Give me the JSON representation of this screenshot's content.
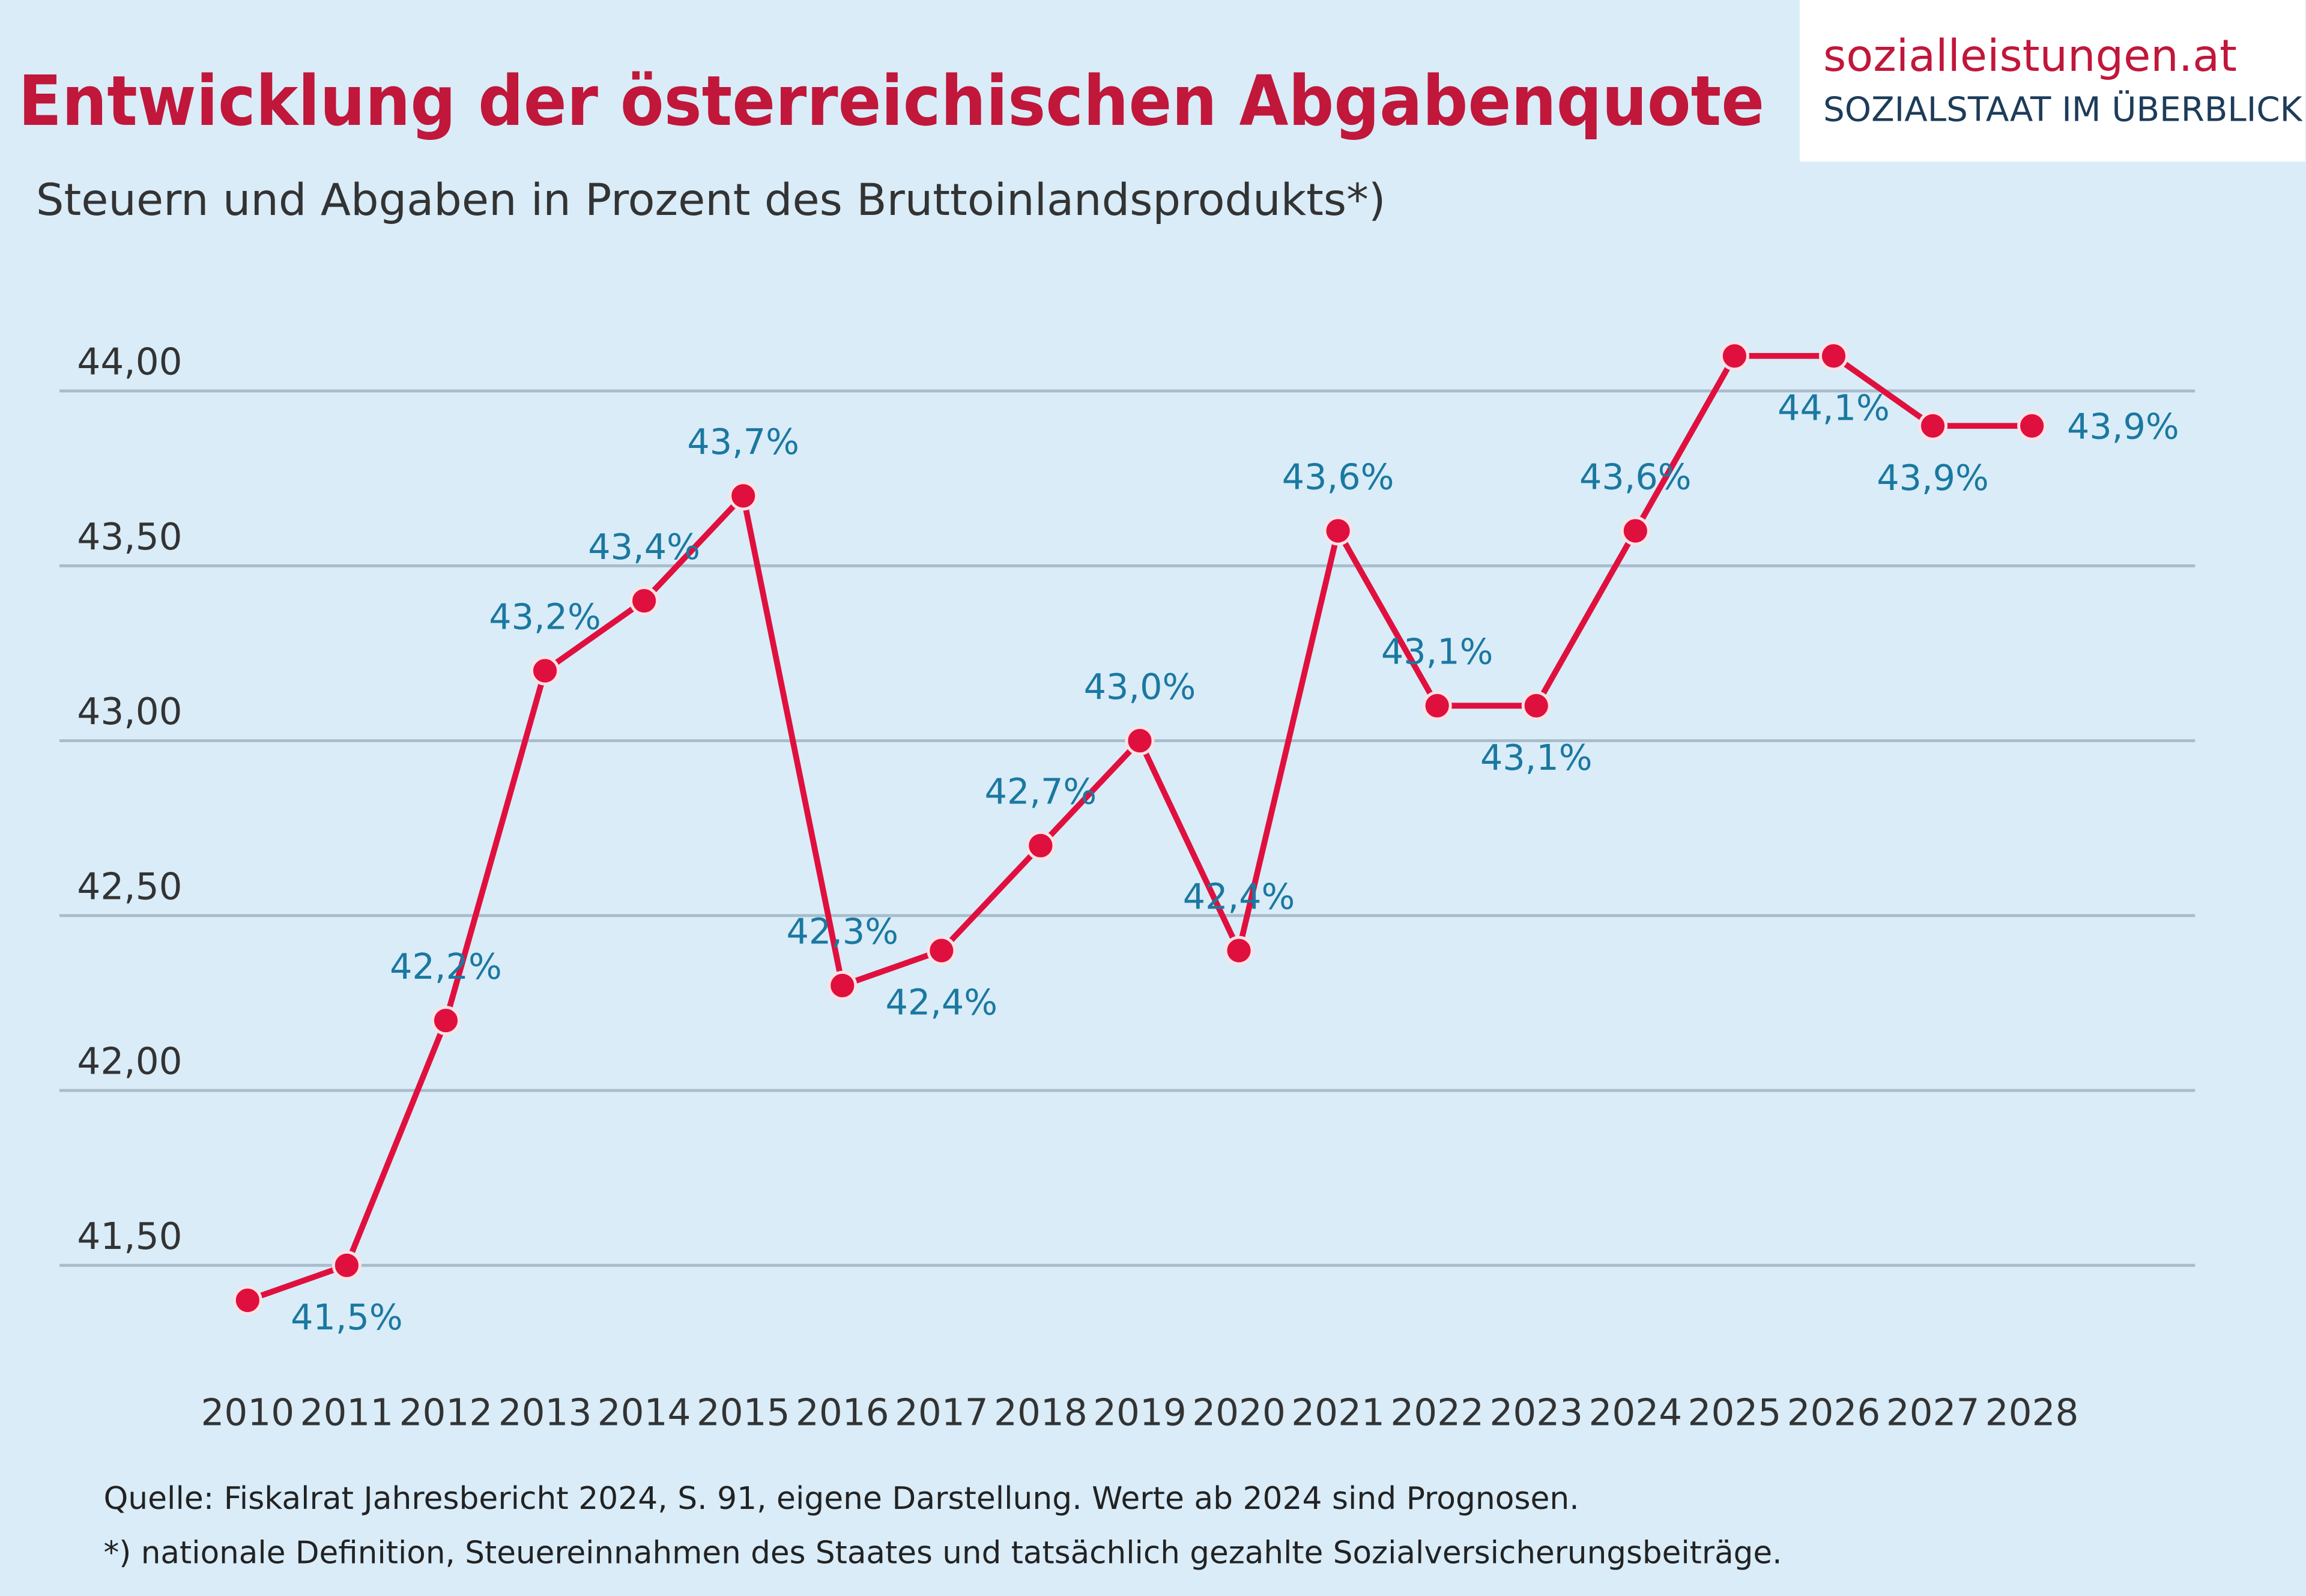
{
  "chart_data": {
    "type": "line",
    "title": "Entwicklung der österreichischen Abgabenquote",
    "subtitle": "Steuern und Abgaben in Prozent des Bruttoinlandsprodukts*)",
    "logo": {
      "name": "sozialleistungen.at",
      "tagline": "SOZIALSTAAT IM ÜBERBLICK"
    },
    "source": "Quelle: Fiskalrat Jahresbericht 2024, S. 91, eigene Darstellung. Werte ab 2024 sind Prognosen.",
    "footnote": "*) nationale Definition, Steuereinnahmen des Staates und tatsächlich gezahlte Sozialversicherungsbeiträge.",
    "categories": [
      "2010",
      "2011",
      "2012",
      "2013",
      "2014",
      "2015",
      "2016",
      "2017",
      "2018",
      "2019",
      "2020",
      "2021",
      "2022",
      "2023",
      "2024",
      "2025",
      "2026",
      "2027",
      "2028"
    ],
    "values": [
      41.4,
      41.5,
      42.2,
      43.2,
      43.4,
      43.7,
      42.3,
      42.4,
      42.7,
      43.0,
      42.4,
      43.6,
      43.1,
      43.1,
      43.6,
      44.1,
      44.1,
      43.9,
      43.9
    ],
    "value_labels": [
      null,
      "41,5%",
      "42,2%",
      "43,2%",
      "43,4%",
      "43,7%",
      "42,3%",
      "42,4%",
      "42,7%",
      "43,0%",
      "42,4%",
      "43,6%",
      "43,1%",
      "43,1%",
      "43,6%",
      null,
      "44,1%",
      "43,9%",
      "43,9%"
    ],
    "color": "#e0103e",
    "label_color": "#1b78a0",
    "ylim": [
      41.3,
      44.25
    ],
    "yticks": [
      {
        "value": 41.5,
        "label": "41,50"
      },
      {
        "value": 42,
        "label": "42,00"
      },
      {
        "value": 42.5,
        "label": "42,50"
      },
      {
        "value": 43,
        "label": "43,00"
      },
      {
        "value": 43.5,
        "label": "43,50"
      },
      {
        "value": 44,
        "label": "44,00"
      }
    ],
    "grid": true
  }
}
